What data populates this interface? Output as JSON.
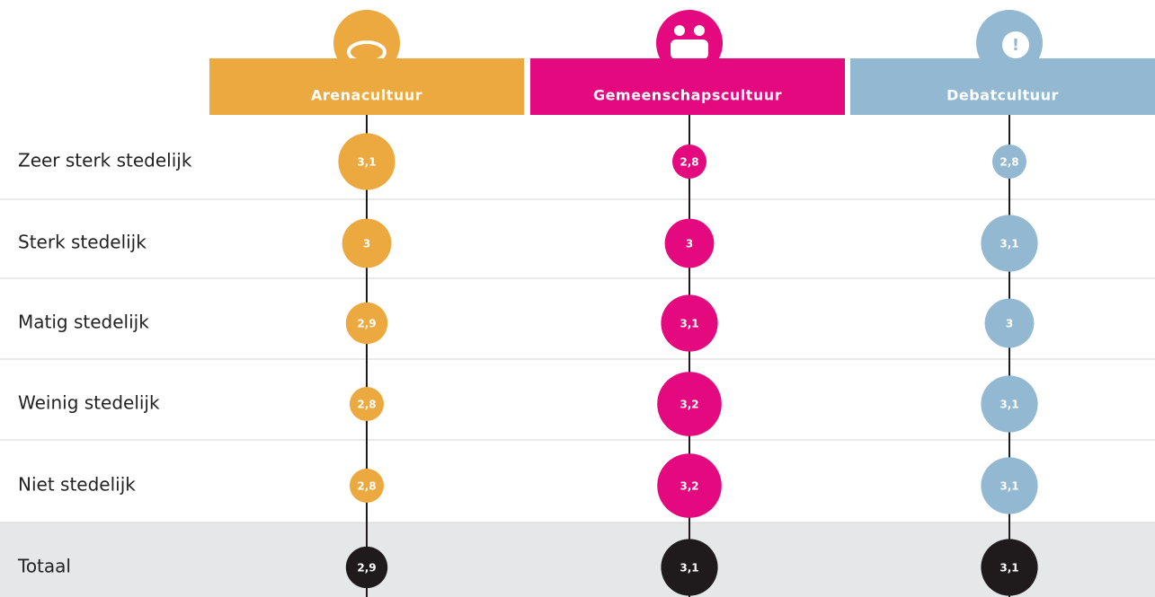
{
  "chart_data": {
    "type": "bubble",
    "categories": [
      "Zeer sterk stedelijk",
      "Sterk stedelijk",
      "Matig stedelijk",
      "Weinig stedelijk",
      "Niet stedelijk"
    ],
    "total_label": "Totaal",
    "total_color": "#1f1a1c",
    "series": [
      {
        "name": "Arenacultuur",
        "color": "#eba93f",
        "values": [
          3.1,
          3,
          2.9,
          2.8,
          2.8
        ],
        "value_labels": [
          "3,1",
          "3",
          "2,9",
          "2,8",
          "2,8"
        ],
        "total": 2.9,
        "total_label": "2,9"
      },
      {
        "name": "Gemeenschapscultuur",
        "color": "#e5097f",
        "values": [
          2.8,
          3,
          3.1,
          3.2,
          3.2
        ],
        "value_labels": [
          "2,8",
          "3",
          "3,1",
          "3,2",
          "3,2"
        ],
        "total": 3.1,
        "total_label": "3,1"
      },
      {
        "name": "Debatcultuur",
        "color": "#93b8d2",
        "values": [
          2.8,
          3.1,
          3,
          3.1,
          3.1
        ],
        "value_labels": [
          "2,8",
          "3,1",
          "3",
          "3,1",
          "3,1"
        ],
        "total": 3.1,
        "total_label": "3,1"
      }
    ]
  }
}
